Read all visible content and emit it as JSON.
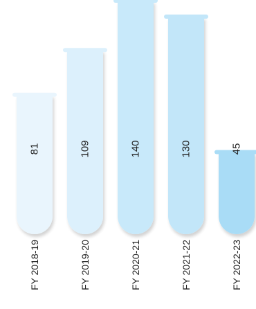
{
  "chart_data": {
    "type": "bar",
    "style": "test-tube",
    "categories": [
      "FY 2018-19",
      "FY 2019-20",
      "FY 2020-21",
      "FY 2021-22",
      "FY 2022-23"
    ],
    "values": [
      81,
      109,
      140,
      130,
      45
    ],
    "value_labels": [
      "81",
      "109",
      "140",
      "130",
      "45"
    ],
    "title": "",
    "xlabel": "",
    "ylabel": "",
    "grid": false,
    "legend": "none",
    "colors": [
      "#e9f5fd",
      "#dcf0fc",
      "#c8e9fa",
      "#c2e6f9",
      "#a9dcf6"
    ],
    "label_color": "#222222"
  }
}
